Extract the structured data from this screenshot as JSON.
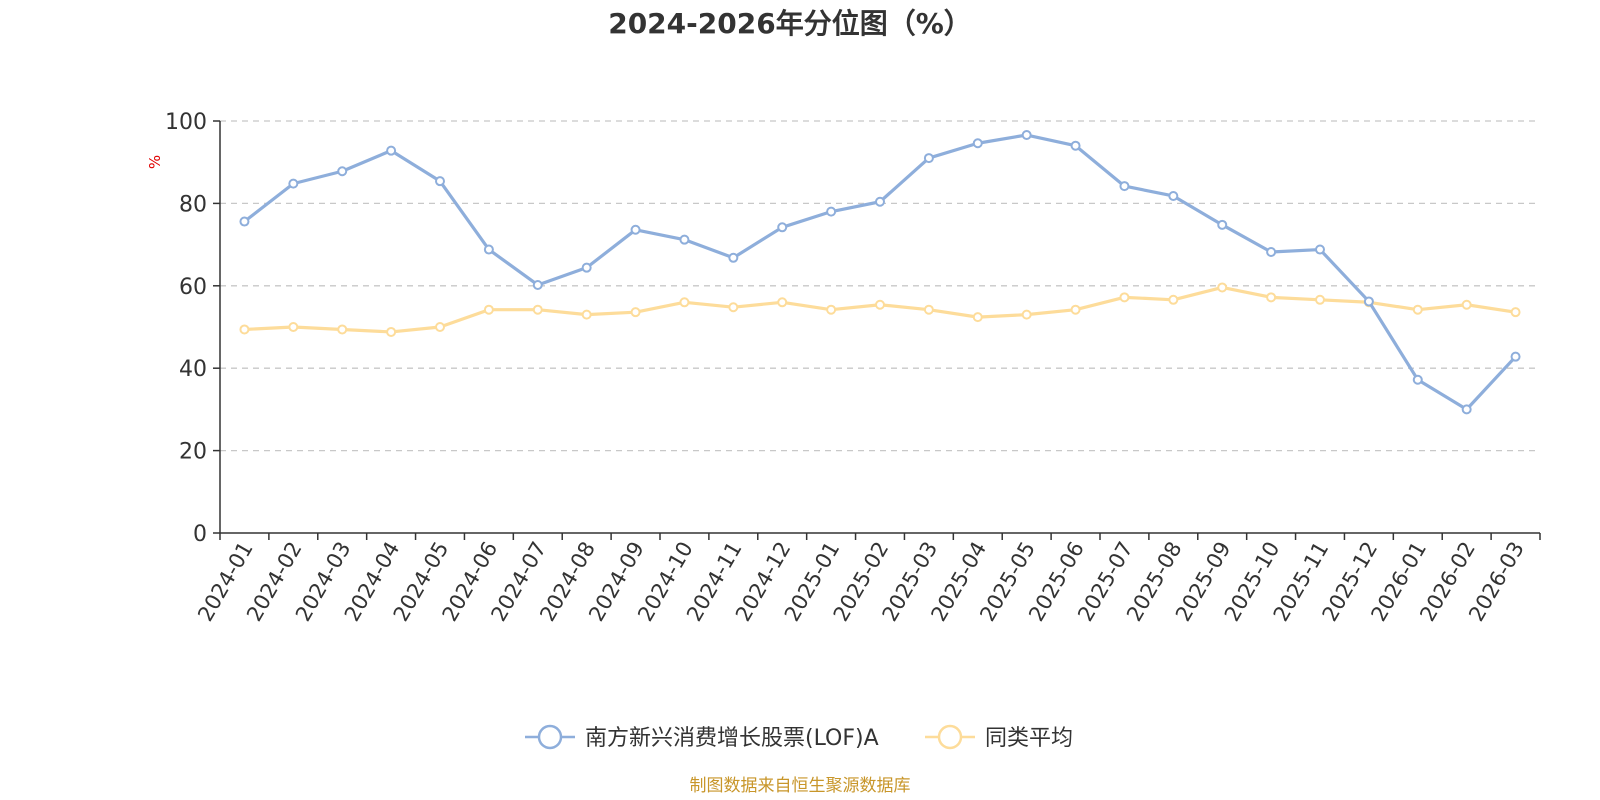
{
  "source_note": "制图数据来自恒生聚源数据库",
  "chart_data": {
    "type": "line",
    "title": "2024-2026年分位图（%）",
    "ylabel": "%",
    "xlabel": "",
    "ylim": [
      0,
      100
    ],
    "yticks": [
      0,
      20,
      40,
      60,
      80,
      100
    ],
    "grid": true,
    "legend_position": "bottom-center",
    "categories": [
      "2024-01",
      "2024-02",
      "2024-03",
      "2024-04",
      "2024-05",
      "2024-06",
      "2024-07",
      "2024-08",
      "2024-09",
      "2024-10",
      "2024-11",
      "2024-12",
      "2025-01",
      "2025-02",
      "2025-03",
      "2025-04",
      "2025-05",
      "2025-06",
      "2025-07",
      "2025-08",
      "2025-09",
      "2025-10",
      "2025-11",
      "2025-12",
      "2026-01",
      "2026-02",
      "2026-03"
    ],
    "series": [
      {
        "name": "南方新兴消费增长股票(LOF)A",
        "color": "#8eaedb",
        "values": [
          75.6,
          84.8,
          87.8,
          92.8,
          85.4,
          68.8,
          60.2,
          64.4,
          73.6,
          71.2,
          66.8,
          74.2,
          78.0,
          80.4,
          91.0,
          94.6,
          96.6,
          94.0,
          84.2,
          81.8,
          74.8,
          68.2,
          68.8,
          56.2,
          37.2,
          30.0,
          42.8
        ]
      },
      {
        "name": "同类平均",
        "color": "#fddc9a",
        "values": [
          49.4,
          50.0,
          49.4,
          48.8,
          50.0,
          54.2,
          54.2,
          53.0,
          53.6,
          56.0,
          54.8,
          56.0,
          54.2,
          55.4,
          54.2,
          52.4,
          53.0,
          54.2,
          57.2,
          56.6,
          59.6,
          57.2,
          56.6,
          56.0,
          54.2,
          55.4,
          53.6
        ]
      }
    ]
  }
}
